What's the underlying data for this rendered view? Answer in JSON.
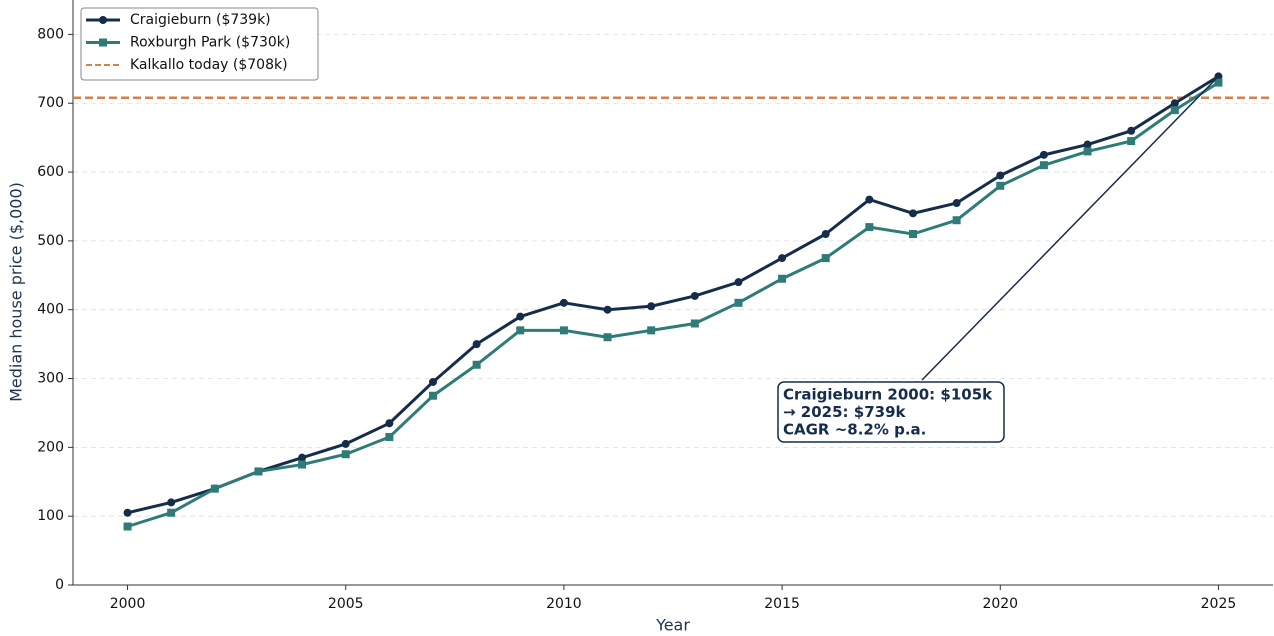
{
  "chart_data": {
    "type": "line",
    "x_label": "Year",
    "y_label": "Median house price  ($,000)",
    "x": [
      2000,
      2001,
      2002,
      2003,
      2004,
      2005,
      2006,
      2007,
      2008,
      2009,
      2010,
      2011,
      2012,
      2013,
      2014,
      2015,
      2016,
      2017,
      2018,
      2019,
      2020,
      2021,
      2022,
      2023,
      2024,
      2025
    ],
    "series": [
      {
        "name": "Craigieburn  ($739k)",
        "color": "#152c4a",
        "marker": "circle",
        "values": [
          105,
          120,
          140,
          165,
          185,
          205,
          235,
          295,
          350,
          390,
          410,
          400,
          405,
          420,
          440,
          475,
          510,
          560,
          540,
          555,
          595,
          625,
          640,
          660,
          700,
          739
        ]
      },
      {
        "name": "Roxburgh Park  ($730k)",
        "color": "#2e7b78",
        "marker": "square",
        "values": [
          85,
          105,
          140,
          165,
          175,
          190,
          215,
          275,
          320,
          370,
          370,
          360,
          370,
          380,
          410,
          445,
          475,
          520,
          510,
          530,
          580,
          610,
          630,
          645,
          690,
          730
        ]
      }
    ],
    "reference_lines": [
      {
        "name": "Kalkallo today  ($708k)",
        "value": 708,
        "color": "#d4814a",
        "style": "dashed"
      }
    ],
    "annotation": {
      "lines": [
        "Craigieburn 2000: $105k",
        "→ 2025: $739k",
        "CAGR ~8.2% p.a."
      ]
    },
    "xlim": [
      1998.75,
      2026.25
    ],
    "ylim": [
      0,
      850
    ],
    "xticks": [
      2000,
      2005,
      2010,
      2015,
      2020,
      2025
    ],
    "yticks": [
      0,
      100,
      200,
      300,
      400,
      500,
      600,
      700,
      800
    ],
    "grid": true,
    "legend": "upper left"
  }
}
